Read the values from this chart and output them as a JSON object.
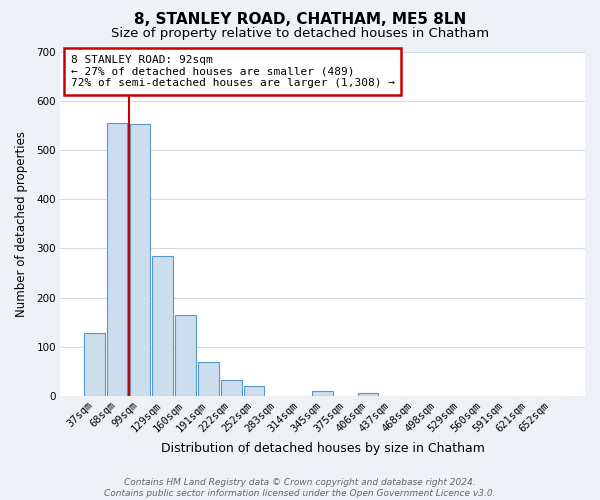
{
  "title": "8, STANLEY ROAD, CHATHAM, ME5 8LN",
  "subtitle": "Size of property relative to detached houses in Chatham",
  "xlabel": "Distribution of detached houses by size in Chatham",
  "ylabel": "Number of detached properties",
  "bar_labels": [
    "37sqm",
    "68sqm",
    "99sqm",
    "129sqm",
    "160sqm",
    "191sqm",
    "222sqm",
    "252sqm",
    "283sqm",
    "314sqm",
    "345sqm",
    "375sqm",
    "406sqm",
    "437sqm",
    "468sqm",
    "498sqm",
    "529sqm",
    "560sqm",
    "591sqm",
    "621sqm",
    "652sqm"
  ],
  "bar_values": [
    128,
    555,
    552,
    285,
    165,
    68,
    33,
    20,
    0,
    0,
    11,
    0,
    5,
    0,
    0,
    0,
    0,
    0,
    0,
    0,
    0
  ],
  "bar_color": "#ccdded",
  "bar_edge_color": "#5599cc",
  "property_line_color": "#cc0000",
  "ylim": [
    0,
    700
  ],
  "yticks": [
    0,
    100,
    200,
    300,
    400,
    500,
    600,
    700
  ],
  "annotation_title": "8 STANLEY ROAD: 92sqm",
  "annotation_line1": "← 27% of detached houses are smaller (489)",
  "annotation_line2": "72% of semi-detached houses are larger (1,308) →",
  "annotation_box_facecolor": "#ffffff",
  "annotation_box_edgecolor": "#cc0000",
  "footer_line1": "Contains HM Land Registry data © Crown copyright and database right 2024.",
  "footer_line2": "Contains public sector information licensed under the Open Government Licence v3.0.",
  "background_color": "#eef2f6",
  "plot_background_color": "#ffffff",
  "grid_color": "#c8d4e0",
  "title_fontsize": 11,
  "subtitle_fontsize": 9.5,
  "xlabel_fontsize": 9,
  "ylabel_fontsize": 8.5,
  "tick_fontsize": 7.5,
  "annotation_fontsize": 8,
  "footer_fontsize": 6.5
}
